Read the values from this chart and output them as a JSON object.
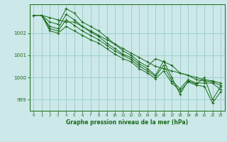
{
  "title": "Graphe pression niveau de la mer (hPa)",
  "bg_color": "#cce8e8",
  "grid_color": "#99cccc",
  "line_color": "#1a6b1a",
  "xlim": [
    -0.5,
    23.5
  ],
  "ylim": [
    998.5,
    1003.3
  ],
  "yticks": [
    999,
    1000,
    1001,
    1002
  ],
  "xticks": [
    0,
    1,
    2,
    3,
    4,
    5,
    6,
    7,
    8,
    9,
    10,
    11,
    12,
    13,
    14,
    15,
    16,
    17,
    18,
    19,
    20,
    21,
    22,
    23
  ],
  "series": [
    [
      1002.8,
      1002.8,
      1002.7,
      1002.6,
      1002.5,
      1002.5,
      1002.3,
      1002.1,
      1001.9,
      1001.7,
      1001.5,
      1001.3,
      1001.1,
      1000.9,
      1000.7,
      1000.5,
      1000.4,
      1000.3,
      1000.2,
      1000.1,
      1000.0,
      999.9,
      999.85,
      999.75
    ],
    [
      1002.8,
      1002.8,
      1002.5,
      1002.4,
      1003.1,
      1002.9,
      1002.5,
      1002.3,
      1002.1,
      1001.8,
      1001.5,
      1001.2,
      1001.0,
      1000.7,
      1000.5,
      1000.85,
      1000.7,
      1000.55,
      1000.2,
      1000.1,
      999.9,
      999.85,
      999.8,
      999.65
    ],
    [
      1002.8,
      1002.8,
      1002.3,
      1002.2,
      1002.85,
      1002.6,
      1002.3,
      1002.05,
      1001.85,
      1001.55,
      1001.3,
      1001.05,
      1000.9,
      1000.6,
      1000.4,
      1000.1,
      1000.75,
      1000.0,
      999.25,
      999.85,
      999.7,
      1000.0,
      999.0,
      999.6
    ],
    [
      1002.8,
      1002.8,
      1002.2,
      1002.1,
      1002.6,
      1002.35,
      1002.1,
      1001.9,
      1001.7,
      1001.45,
      1001.2,
      1001.0,
      1000.8,
      1000.5,
      1000.3,
      1000.05,
      1000.55,
      999.85,
      999.5,
      999.9,
      999.75,
      999.75,
      999.75,
      999.45
    ],
    [
      1002.8,
      1002.8,
      1002.1,
      1002.0,
      1002.3,
      1002.1,
      1001.9,
      1001.7,
      1001.55,
      1001.3,
      1001.05,
      1000.85,
      1000.7,
      1000.4,
      1000.2,
      999.95,
      1000.3,
      999.75,
      999.4,
      999.8,
      999.65,
      999.6,
      998.85,
      999.35
    ]
  ]
}
